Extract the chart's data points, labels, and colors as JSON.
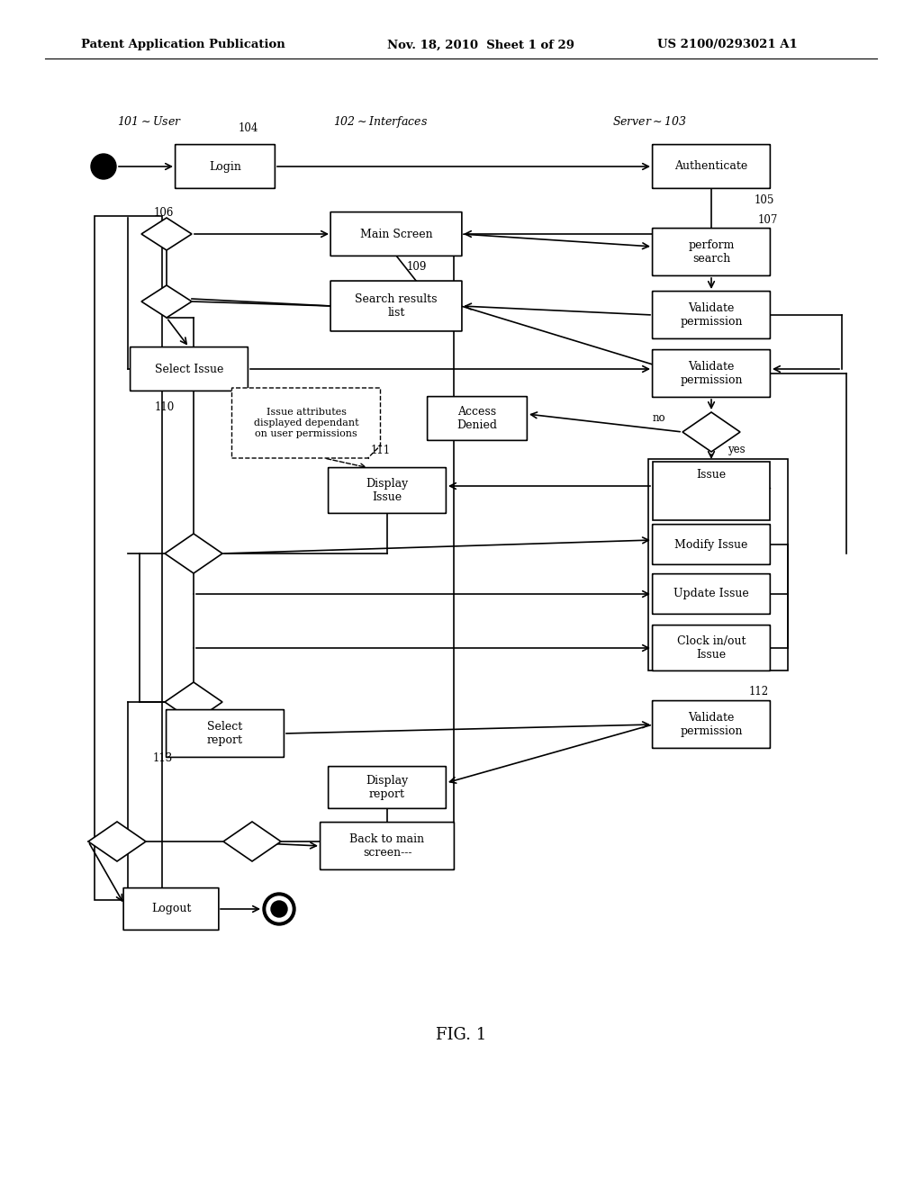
{
  "bg_color": "#ffffff",
  "header_left": "Patent Application Publication",
  "header_center": "Nov. 18, 2010  Sheet 1 of 29",
  "header_right": "US 2100/0293021 A1",
  "fig_label": "FIG. 1"
}
